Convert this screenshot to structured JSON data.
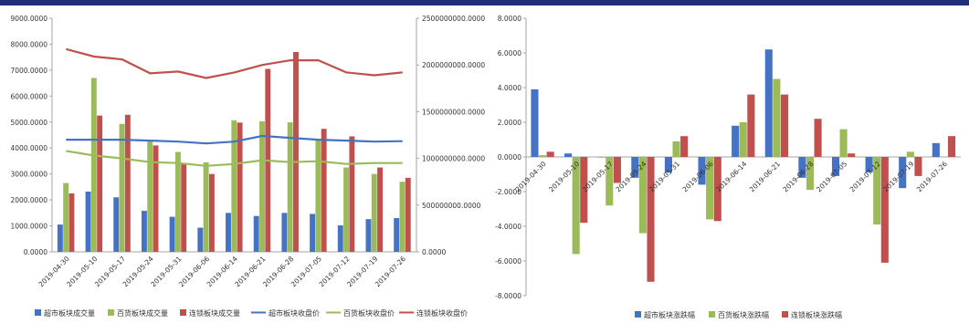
{
  "chart_data": [
    {
      "type": "bar",
      "categories": [
        "2019-04-30",
        "2019-05-10",
        "2019-05-17",
        "2019-05-24",
        "2019-05-31",
        "2019-06-06",
        "2019-06-14",
        "2019-06-21",
        "2019-06-28",
        "2019-07-05",
        "2019-07-12",
        "2019-07-19",
        "2019-07-26"
      ],
      "ylim": [
        0,
        9000
      ],
      "y_ticks": [
        "0.0000",
        "1000.0000",
        "2000.0000",
        "3000.0000",
        "4000.0000",
        "5000.0000",
        "6000.0000",
        "7000.0000",
        "8000.0000",
        "9000.0000"
      ],
      "y2lim": [
        0,
        2500000000
      ],
      "y2_ticks": [
        "0.0000",
        "500000000.0000",
        "1000000000.0000",
        "1500000000.0000",
        "2000000000.0000",
        "2500000000.0000"
      ],
      "bar_series": [
        {
          "name": "超市板块成交量",
          "color": "#4472c4",
          "values": [
            1050,
            2320,
            2100,
            1580,
            1350,
            930,
            1500,
            1380,
            1500,
            1460,
            1020,
            1260,
            1300
          ]
        },
        {
          "name": "百货板块成交量",
          "color": "#9bbb59",
          "values": [
            2650,
            6700,
            4930,
            4250,
            3850,
            3450,
            5070,
            5030,
            4990,
            4350,
            3250,
            3000,
            2700
          ]
        },
        {
          "name": "连锁板块成交量",
          "color": "#c0504d",
          "values": [
            2250,
            5250,
            5280,
            4100,
            3400,
            3000,
            4980,
            7050,
            7700,
            4740,
            4450,
            3250,
            2850
          ]
        }
      ],
      "line_series": [
        {
          "name": "超市板块收盘价",
          "color": "#4472c4",
          "values": [
            1200000000,
            1200000000,
            1200000000,
            1190000000,
            1180000000,
            1160000000,
            1180000000,
            1240000000,
            1220000000,
            1200000000,
            1190000000,
            1180000000,
            1185000000
          ]
        },
        {
          "name": "百货板块收盘价",
          "color": "#9bbb59",
          "values": [
            1080000000,
            1030000000,
            1000000000,
            960000000,
            950000000,
            920000000,
            940000000,
            980000000,
            960000000,
            970000000,
            940000000,
            950000000,
            950000000
          ]
        },
        {
          "name": "连锁板块收盘价",
          "color": "#c0504d",
          "values": [
            2170000000,
            2090000000,
            2060000000,
            1910000000,
            1930000000,
            1860000000,
            1920000000,
            2000000000,
            2050000000,
            2050000000,
            1920000000,
            1890000000,
            1920000000
          ]
        }
      ],
      "grid": false,
      "legend": "bottom"
    },
    {
      "type": "bar",
      "categories": [
        "2019-04-30",
        "2019-05-10",
        "2019-05-17",
        "2019-05-24",
        "2019-05-31",
        "2019-06-06",
        "2019-06-14",
        "2019-06-21",
        "2019-06-28",
        "2019-07-05",
        "2019-07-12",
        "2019-07-19",
        "2019-07-26"
      ],
      "ylim": [
        -8,
        8
      ],
      "y_ticks": [
        "-8.0000",
        "-6.0000",
        "-4.0000",
        "-2.0000",
        "0.0000",
        "2.0000",
        "4.0000",
        "6.0000",
        "8.0000"
      ],
      "series": [
        {
          "name": "超市板块涨跌幅",
          "color": "#4472c4",
          "values": [
            3.9,
            0.2,
            0.0,
            -1.2,
            -0.9,
            -1.6,
            1.8,
            6.2,
            -1.2,
            -1.1,
            -0.9,
            -1.8,
            0.8
          ]
        },
        {
          "name": "百货板块涨跌幅",
          "color": "#9bbb59",
          "values": [
            0.1,
            -5.6,
            -2.8,
            -4.4,
            0.9,
            -3.6,
            2.0,
            4.5,
            -1.9,
            1.6,
            -3.9,
            0.3,
            0.0
          ]
        },
        {
          "name": "连锁板块涨跌幅",
          "color": "#c0504d",
          "values": [
            0.3,
            -3.8,
            -1.5,
            -7.2,
            1.2,
            -3.7,
            3.6,
            3.6,
            2.2,
            0.2,
            -6.1,
            -1.1,
            1.2
          ]
        }
      ],
      "grid": false,
      "legend": "bottom"
    }
  ]
}
